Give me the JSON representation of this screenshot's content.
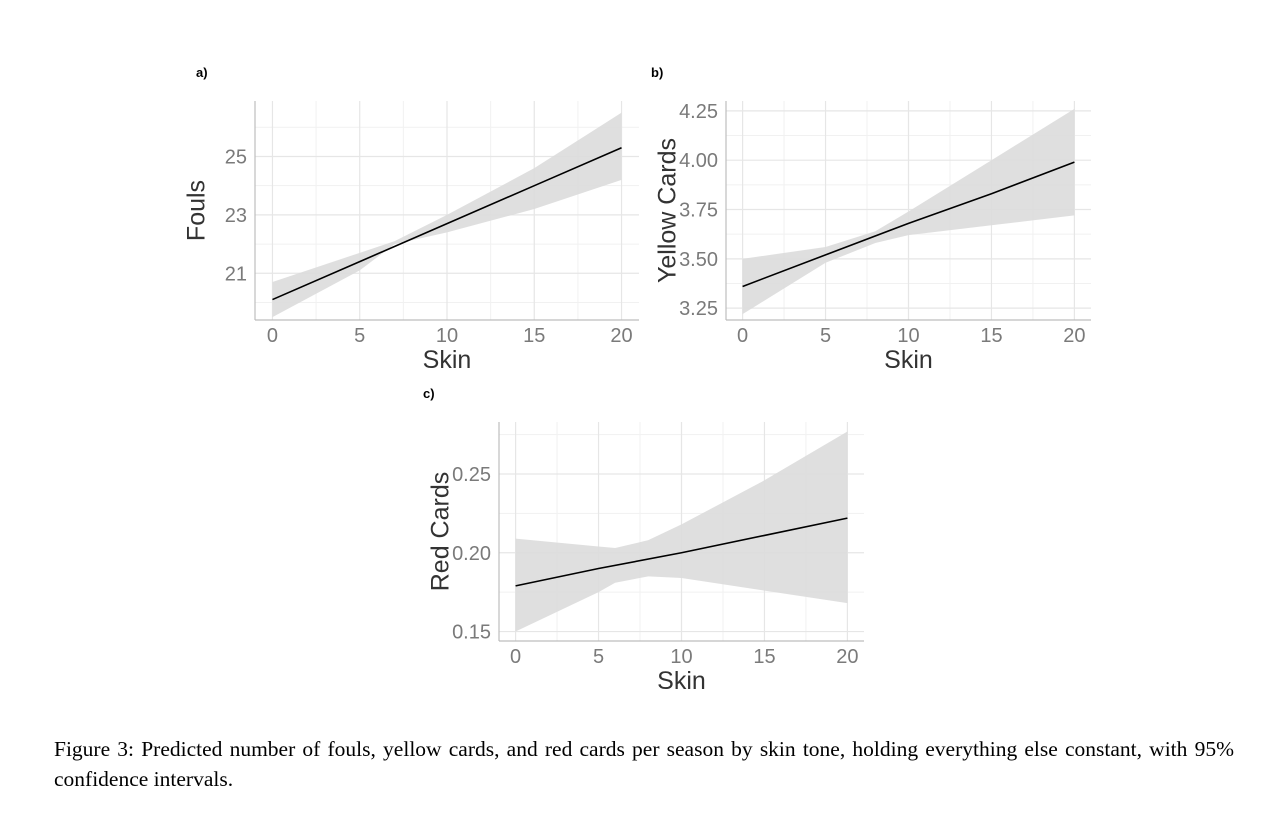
{
  "caption": "Figure 3: Predicted number of fouls, yellow cards, and red cards per season by skin tone, holding everything else constant, with 95% confidence intervals.",
  "colors": {
    "line": "#000000",
    "band": "#dcdcdc",
    "grid_major": "#e6e6e6",
    "grid_minor": "#f1f1f1",
    "axis": "#bdbdbd",
    "tick_label": "#7a7a7a",
    "axis_title": "#333333"
  },
  "chart_data": [
    {
      "panel_label": "a)",
      "type": "line",
      "xlabel": "Skin",
      "ylabel": "Fouls",
      "xlim": [
        -1,
        21
      ],
      "ylim": [
        19.4,
        26.9
      ],
      "xticks": [
        0,
        5,
        10,
        15,
        20
      ],
      "yticks": [
        21,
        23,
        25
      ],
      "xtick_labels": [
        "0",
        "5",
        "10",
        "15",
        "20"
      ],
      "ytick_labels": [
        "21",
        "23",
        "25"
      ],
      "grid": true,
      "x": [
        0,
        5,
        10,
        15,
        20
      ],
      "y": [
        20.1,
        21.4,
        22.7,
        24.0,
        25.3
      ],
      "ci_x": [
        0,
        5,
        7,
        10,
        15,
        20
      ],
      "ci_lower": [
        19.5,
        21.1,
        22.0,
        22.4,
        23.2,
        24.2
      ],
      "ci_upper": [
        20.7,
        21.7,
        22.1,
        23.0,
        24.6,
        26.5
      ]
    },
    {
      "panel_label": "b)",
      "type": "line",
      "xlabel": "Skin",
      "ylabel": "Yellow Cards",
      "xlim": [
        -1,
        21
      ],
      "ylim": [
        3.19,
        4.3
      ],
      "xticks": [
        0,
        5,
        10,
        15,
        20
      ],
      "yticks": [
        3.25,
        3.5,
        3.75,
        4.0,
        4.25
      ],
      "xtick_labels": [
        "0",
        "5",
        "10",
        "15",
        "20"
      ],
      "ytick_labels": [
        "3.25",
        "3.50",
        "3.75",
        "4.00",
        "4.25"
      ],
      "grid": true,
      "x": [
        0,
        5,
        10,
        15,
        20
      ],
      "y": [
        3.36,
        3.52,
        3.68,
        3.83,
        3.99
      ],
      "ci_x": [
        0,
        5,
        8,
        10,
        15,
        20
      ],
      "ci_lower": [
        3.22,
        3.48,
        3.58,
        3.62,
        3.67,
        3.72
      ],
      "ci_upper": [
        3.5,
        3.56,
        3.64,
        3.74,
        4.0,
        4.26
      ]
    },
    {
      "panel_label": "c)",
      "type": "line",
      "xlabel": "Skin",
      "ylabel": "Red Cards",
      "xlim": [
        -1,
        21
      ],
      "ylim": [
        0.144,
        0.283
      ],
      "xticks": [
        0,
        5,
        10,
        15,
        20
      ],
      "yticks": [
        0.15,
        0.2,
        0.25
      ],
      "xtick_labels": [
        "0",
        "5",
        "10",
        "15",
        "20"
      ],
      "ytick_labels": [
        "0.15",
        "0.20",
        "0.25"
      ],
      "grid": true,
      "x": [
        0,
        5,
        10,
        15,
        20
      ],
      "y": [
        0.179,
        0.19,
        0.2,
        0.211,
        0.222
      ],
      "ci_x": [
        0,
        5,
        6,
        8,
        10,
        15,
        20
      ],
      "ci_lower": [
        0.15,
        0.175,
        0.181,
        0.185,
        0.184,
        0.176,
        0.168
      ],
      "ci_upper": [
        0.209,
        0.204,
        0.203,
        0.208,
        0.218,
        0.246,
        0.277
      ]
    }
  ]
}
